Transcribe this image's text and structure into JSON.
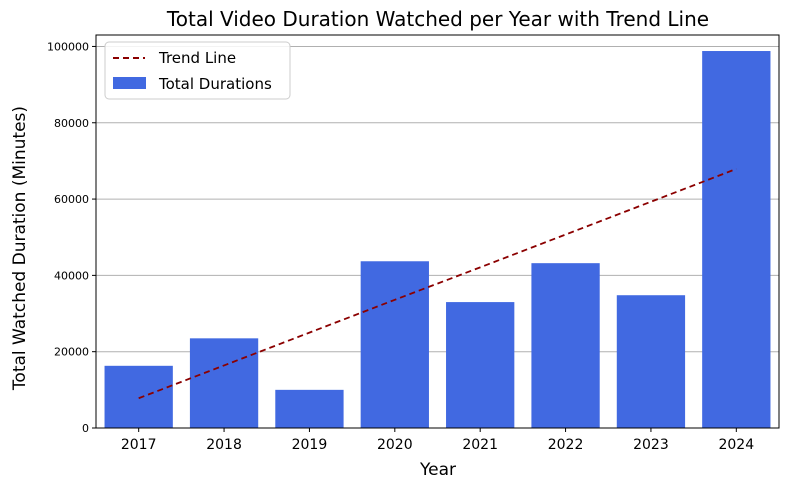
{
  "chart_data": {
    "type": "bar",
    "title": "Total Video Duration Watched per Year with Trend Line",
    "xlabel": "Year",
    "ylabel": "Total Watched Duration (Minutes)",
    "categories": [
      "2017",
      "2018",
      "2019",
      "2020",
      "2021",
      "2022",
      "2023",
      "2024"
    ],
    "series": [
      {
        "name": "Total Durations",
        "type": "bar",
        "color": "#4169e1",
        "values": [
          16300,
          23500,
          10000,
          43700,
          33000,
          43200,
          34800,
          98800
        ]
      },
      {
        "name": "Trend Line",
        "type": "line",
        "style": "dashed",
        "color": "#8b0000",
        "values": [
          7800,
          16400,
          25000,
          33600,
          42100,
          50700,
          59300,
          67900
        ]
      }
    ],
    "ylim": [
      0,
      103000
    ],
    "yticks": [
      0,
      20000,
      40000,
      60000,
      80000,
      100000
    ],
    "grid": "y",
    "legend_position": "top-left"
  }
}
